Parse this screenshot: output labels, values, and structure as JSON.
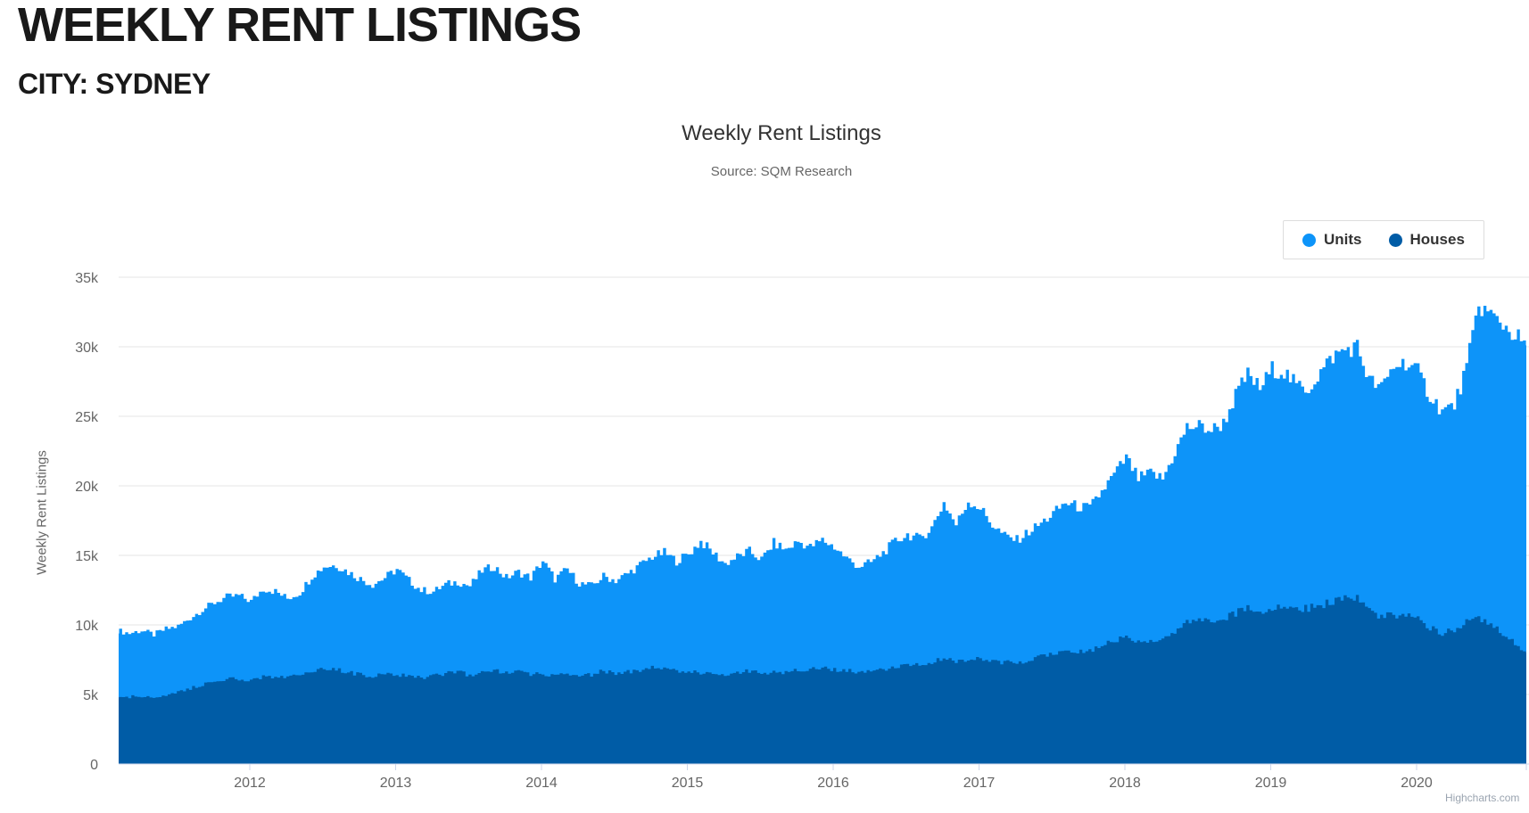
{
  "page": {
    "title": "WEEKLY RENT LISTINGS",
    "subtitle": "CITY: SYDNEY"
  },
  "chart": {
    "title": "Weekly Rent Listings",
    "subtitle": "Source: SQM Research",
    "y_axis_title": "Weekly Rent Listings",
    "credits": "Highcharts.com"
  },
  "chart_data": {
    "type": "area",
    "stacking": "normal",
    "title": "Weekly Rent Listings",
    "subtitle": "Source: SQM Research",
    "xlabel": "",
    "ylabel": "Weekly Rent Listings",
    "ylim": [
      0,
      35000
    ],
    "y_tick_interval": 5000,
    "y_tick_labels": [
      "0",
      "5k",
      "10k",
      "15k",
      "20k",
      "25k",
      "30k",
      "35k"
    ],
    "x_ticks": [
      2012,
      2013,
      2014,
      2015,
      2016,
      2017,
      2018,
      2019,
      2020
    ],
    "xlim": [
      2011.09,
      2020.77
    ],
    "x_start_year": 2011.0833,
    "x_step_years": 0.0833,
    "grid": "horizontal",
    "legend_position": "top-right",
    "series": [
      {
        "name": "Units",
        "color": "#0D94F9",
        "values": [
          4900,
          4600,
          4700,
          4500,
          4700,
          4700,
          5100,
          5400,
          5700,
          5900,
          6000,
          5700,
          6300,
          6100,
          5700,
          5900,
          6800,
          7400,
          7500,
          7200,
          6900,
          6600,
          7000,
          7600,
          6900,
          6300,
          6100,
          6400,
          6500,
          6400,
          7300,
          7500,
          6900,
          7200,
          7000,
          8100,
          7000,
          7500,
          6600,
          6400,
          6800,
          6700,
          7100,
          7600,
          8000,
          8300,
          7900,
          8500,
          9400,
          8700,
          8000,
          8400,
          8600,
          8200,
          9300,
          8800,
          9200,
          8800,
          9200,
          8800,
          8100,
          7600,
          7800,
          8400,
          9100,
          9400,
          9000,
          9700,
          11200,
          9900,
          11300,
          10800,
          9800,
          9100,
          8800,
          9200,
          9600,
          10100,
          10800,
          10500,
          10300,
          11100,
          12000,
          12700,
          11700,
          12000,
          11500,
          12800,
          14000,
          14000,
          13700,
          14100,
          15700,
          16600,
          16100,
          17200,
          16900,
          16000,
          15800,
          16800,
          17600,
          17800,
          18100,
          16600,
          16400,
          17900,
          18200,
          17700,
          16700,
          16000,
          16100,
          18300,
          22600,
          22300,
          22300,
          22100,
          22100
        ]
      },
      {
        "name": "Houses",
        "color": "#005CA6",
        "values": [
          4700,
          4800,
          4900,
          4800,
          5000,
          5200,
          5400,
          5700,
          5900,
          6100,
          6100,
          6000,
          6300,
          6300,
          6200,
          6400,
          6700,
          6800,
          6800,
          6600,
          6400,
          6300,
          6400,
          6400,
          6300,
          6200,
          6300,
          6500,
          6600,
          6400,
          6600,
          6700,
          6500,
          6600,
          6400,
          6500,
          6300,
          6500,
          6400,
          6400,
          6700,
          6500,
          6600,
          6700,
          6900,
          6900,
          6700,
          6600,
          6600,
          6500,
          6400,
          6500,
          6700,
          6500,
          6600,
          6600,
          6800,
          6800,
          6900,
          6800,
          6700,
          6600,
          6700,
          6800,
          6900,
          7100,
          7200,
          7300,
          7600,
          7300,
          7600,
          7600,
          7400,
          7300,
          7300,
          7500,
          7700,
          7900,
          8000,
          8000,
          8100,
          8500,
          8800,
          9300,
          8800,
          8900,
          9000,
          9600,
          10200,
          10300,
          10300,
          10400,
          10800,
          11400,
          10900,
          11200,
          11300,
          11200,
          11200,
          11400,
          11700,
          12000,
          11900,
          11000,
          10600,
          10700,
          10700,
          10500,
          9800,
          9400,
          9700,
          10200,
          10400,
          10000,
          9300,
          8700,
          8000
        ]
      }
    ]
  }
}
